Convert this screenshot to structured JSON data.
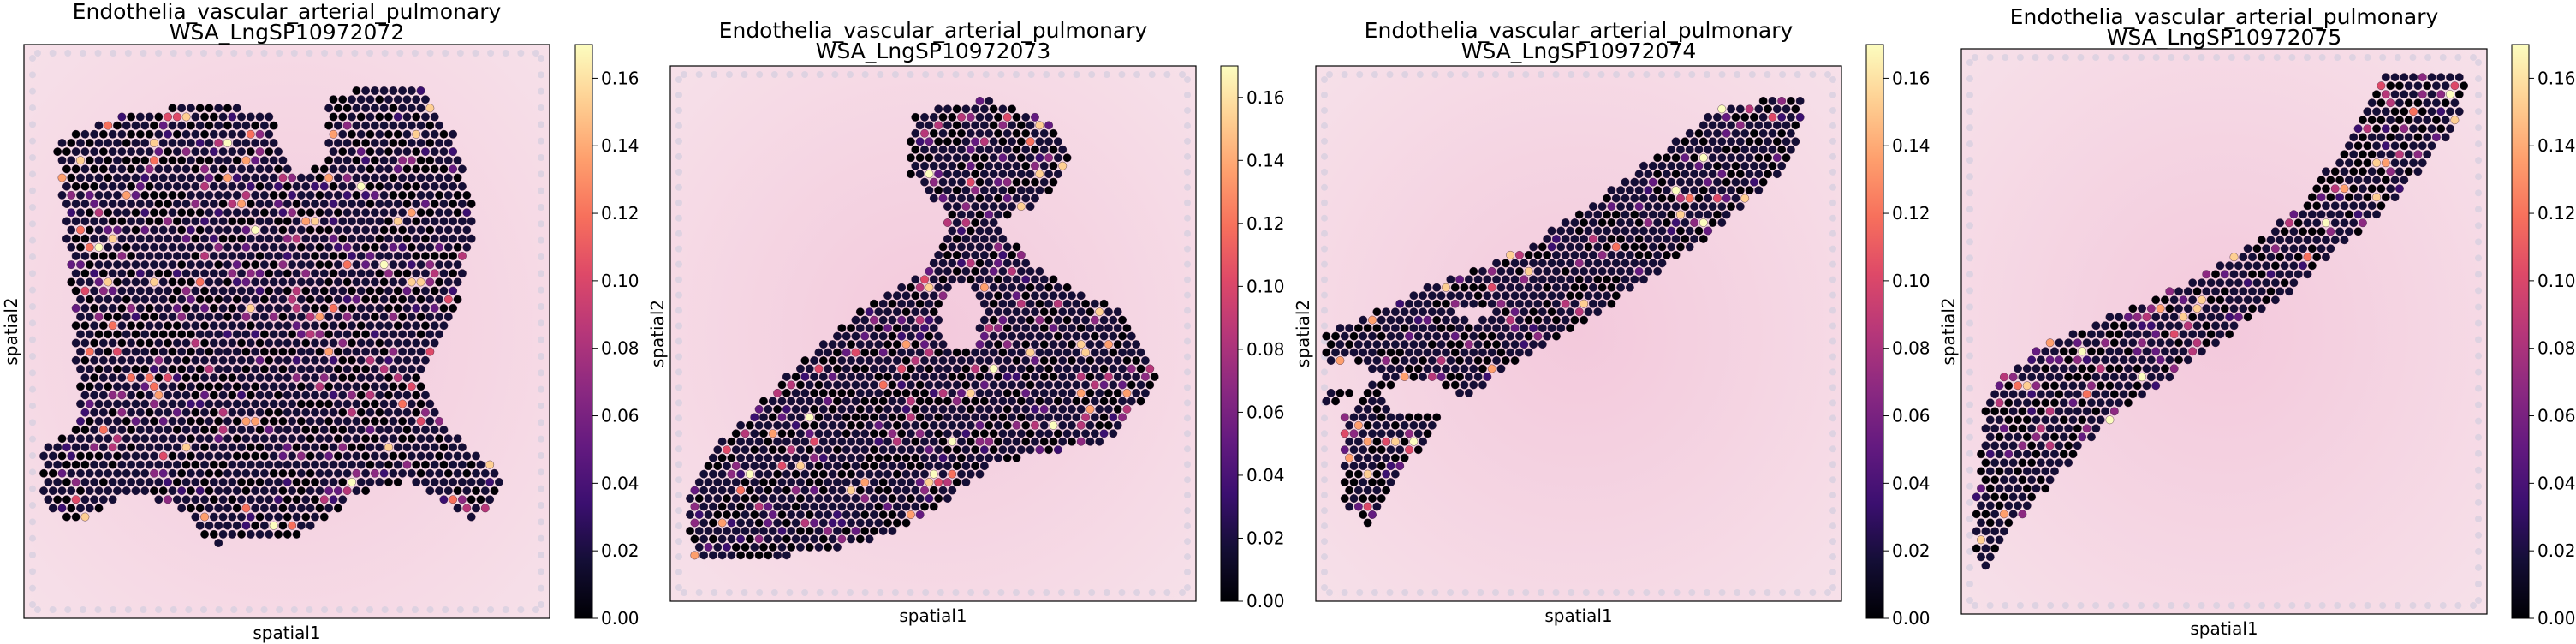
{
  "chart_data": [
    {
      "type": "scatter",
      "title": "Endothelia_vascular_arterial_pulmonary\nWSA_LngSP10972072",
      "xlabel": "spatial1",
      "ylabel": "spatial2",
      "colorbar": {
        "colormap": "magma",
        "range": [
          0.0,
          0.17
        ],
        "ticks": [
          "0.00",
          "0.02",
          "0.04",
          "0.06",
          "0.08",
          "0.10",
          "0.12",
          "0.14",
          "0.16"
        ]
      },
      "background": "H&E tissue image",
      "grid": false
    },
    {
      "type": "scatter",
      "title": "Endothelia_vascular_arterial_pulmonary\nWSA_LngSP10972073",
      "xlabel": "spatial1",
      "ylabel": "spatial2",
      "colorbar": {
        "colormap": "magma",
        "range": [
          0.0,
          0.17
        ],
        "ticks": [
          "0.00",
          "0.02",
          "0.04",
          "0.06",
          "0.08",
          "0.10",
          "0.12",
          "0.14",
          "0.16"
        ]
      },
      "background": "H&E tissue image",
      "grid": false
    },
    {
      "type": "scatter",
      "title": "Endothelia_vascular_arterial_pulmonary\nWSA_LngSP10972074",
      "xlabel": "spatial1",
      "ylabel": "spatial2",
      "colorbar": {
        "colormap": "magma",
        "range": [
          0.0,
          0.17
        ],
        "ticks": [
          "0.00",
          "0.02",
          "0.04",
          "0.06",
          "0.08",
          "0.10",
          "0.12",
          "0.14",
          "0.16"
        ]
      },
      "background": "H&E tissue image",
      "grid": false
    },
    {
      "type": "scatter",
      "title": "Endothelia_vascular_arterial_pulmonary\nWSA_LngSP10972075",
      "xlabel": "spatial1",
      "ylabel": "spatial2",
      "colorbar": {
        "colormap": "magma",
        "range": [
          0.0,
          0.17
        ],
        "ticks": [
          "0.00",
          "0.02",
          "0.04",
          "0.06",
          "0.08",
          "0.10",
          "0.12",
          "0.14",
          "0.16"
        ]
      },
      "background": "H&E tissue image",
      "grid": false
    }
  ]
}
